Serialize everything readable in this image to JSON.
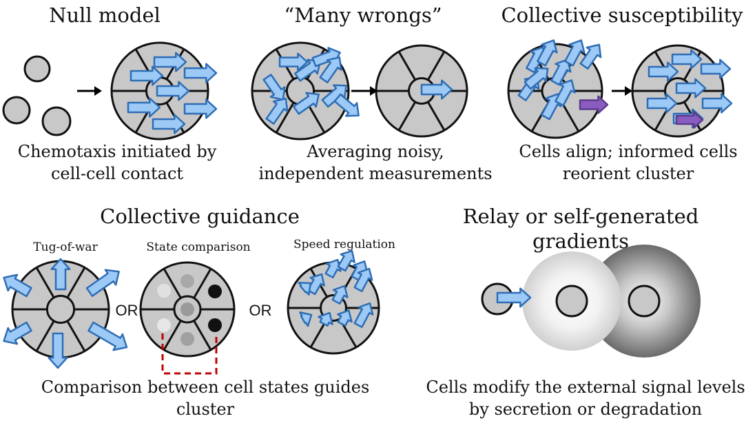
{
  "panels": {
    "null_model": {
      "title": "Null model",
      "caption_line1": "Chemotaxis initiated by",
      "caption_line2": "cell-cell contact"
    },
    "many_wrongs": {
      "title": "“Many wrongs”",
      "caption_line1": "Averaging noisy,",
      "caption_line2": "independent measurements"
    },
    "collective_susceptibility": {
      "title": "Collective susceptibility",
      "caption_line1": "Cells align; informed cells",
      "caption_line2": "reorient cluster"
    },
    "collective_guidance": {
      "title": "Collective guidance",
      "sub_tug": "Tug-of-war",
      "sub_state": "State comparison",
      "sub_speed": "Speed regulation",
      "or_1": "OR",
      "or_2": "OR",
      "caption_line1": "Comparison between cell states guides",
      "caption_line2": "cluster"
    },
    "relay": {
      "title_line1": "Relay or self-generated",
      "title_line2": "gradients",
      "caption_line1": "Cells modify the external signal levels",
      "caption_line2": "by secretion or degradation"
    }
  },
  "colors": {
    "arrow_fill": "#9cc9f5",
    "arrow_stroke": "#2e6db5",
    "informed_fill": "#8a5cc0",
    "informed_stroke": "#5b3a8c",
    "cell_fill": "#c8c8c8",
    "cell_stroke": "#111111",
    "dashed_link": "#c00000"
  }
}
